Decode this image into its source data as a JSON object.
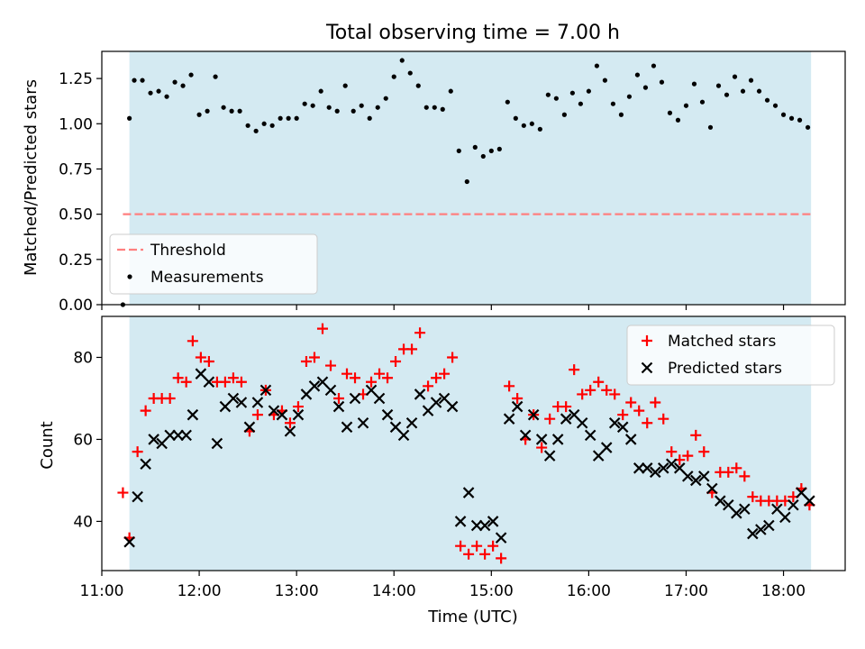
{
  "title": "Total observing time = 7.00 h",
  "colors": {
    "shade": "#add8e6",
    "threshold": "#ff7f7f",
    "measurement": "#000000",
    "matched": "#ff0000",
    "predicted": "#000000"
  },
  "chart_data": [
    {
      "type": "scatter",
      "ylabel": "Matched/Predicted stars",
      "xlim": [
        "11:00",
        "18:38"
      ],
      "ylim": [
        0,
        1.4
      ],
      "yticks": [
        0.0,
        0.25,
        0.5,
        0.75,
        1.0,
        1.25
      ],
      "ytick_labels": [
        "0.00",
        "0.25",
        "0.50",
        "0.75",
        "1.00",
        "1.25"
      ],
      "legend_position": "lower-left",
      "shaded_region": [
        "11:17",
        "18:17"
      ],
      "threshold": {
        "name": "Threshold",
        "y": 0.5,
        "x_range": [
          "11:13",
          "18:17"
        ]
      },
      "series": [
        {
          "name": "Measurements",
          "x": [
            "11:13",
            "11:17",
            "11:20",
            "11:25",
            "11:30",
            "11:35",
            "11:40",
            "11:45",
            "11:50",
            "11:55",
            "12:00",
            "12:05",
            "12:10",
            "12:15",
            "12:20",
            "12:25",
            "12:30",
            "12:35",
            "12:40",
            "12:45",
            "12:50",
            "12:55",
            "13:00",
            "13:05",
            "13:10",
            "13:15",
            "13:20",
            "13:25",
            "13:30",
            "13:35",
            "13:40",
            "13:45",
            "13:50",
            "13:55",
            "14:00",
            "14:05",
            "14:10",
            "14:15",
            "14:20",
            "14:25",
            "14:30",
            "14:35",
            "14:40",
            "14:45",
            "14:50",
            "14:55",
            "15:00",
            "15:05",
            "15:10",
            "15:15",
            "15:20",
            "15:25",
            "15:30",
            "15:35",
            "15:40",
            "15:45",
            "15:50",
            "15:55",
            "16:00",
            "16:05",
            "16:10",
            "16:15",
            "16:20",
            "16:25",
            "16:30",
            "16:35",
            "16:40",
            "16:45",
            "16:50",
            "16:55",
            "17:00",
            "17:05",
            "17:10",
            "17:15",
            "17:20",
            "17:25",
            "17:30",
            "17:35",
            "17:40",
            "17:45",
            "17:50",
            "17:55",
            "18:00",
            "18:05",
            "18:10",
            "18:15"
          ],
          "y": [
            0.0,
            1.03,
            1.24,
            1.24,
            1.17,
            1.18,
            1.15,
            1.23,
            1.21,
            1.27,
            1.05,
            1.07,
            1.26,
            1.09,
            1.07,
            1.07,
            0.99,
            0.96,
            1.0,
            0.99,
            1.03,
            1.03,
            1.03,
            1.11,
            1.1,
            1.18,
            1.09,
            1.07,
            1.21,
            1.07,
            1.1,
            1.03,
            1.09,
            1.14,
            1.26,
            1.35,
            1.28,
            1.21,
            1.09,
            1.09,
            1.08,
            1.18,
            0.85,
            0.68,
            0.87,
            0.82,
            0.85,
            0.86,
            1.12,
            1.03,
            0.99,
            1.0,
            0.97,
            1.16,
            1.14,
            1.05,
            1.17,
            1.11,
            1.18,
            1.32,
            1.24,
            1.11,
            1.05,
            1.15,
            1.27,
            1.2,
            1.32,
            1.23,
            1.06,
            1.02,
            1.1,
            1.22,
            1.12,
            0.98,
            1.21,
            1.16,
            1.26,
            1.18,
            1.24,
            1.18,
            1.13,
            1.1,
            1.05,
            1.03,
            1.02,
            0.98
          ]
        }
      ]
    },
    {
      "type": "scatter",
      "xlabel": "Time (UTC)",
      "ylabel": "Count",
      "xlim": [
        "11:00",
        "18:38"
      ],
      "ylim": [
        28,
        90
      ],
      "yticks": [
        40,
        60,
        80
      ],
      "ytick_labels": [
        "40",
        "60",
        "80"
      ],
      "xticks": [
        "11:00",
        "12:00",
        "13:00",
        "14:00",
        "15:00",
        "16:00",
        "17:00",
        "18:00"
      ],
      "legend_position": "upper-right",
      "shaded_region": [
        "11:17",
        "18:17"
      ],
      "series": [
        {
          "name": "Matched stars",
          "marker": "plus",
          "points": [
            [
              "11:13",
              47
            ],
            [
              "11:17",
              36
            ],
            [
              "11:22",
              57
            ],
            [
              "11:27",
              67
            ],
            [
              "11:32",
              70
            ],
            [
              "11:37",
              70
            ],
            [
              "11:42",
              70
            ],
            [
              "11:47",
              75
            ],
            [
              "11:52",
              74
            ],
            [
              "11:56",
              84
            ],
            [
              "12:01",
              80
            ],
            [
              "12:06",
              79
            ],
            [
              "12:11",
              74
            ],
            [
              "12:16",
              74
            ],
            [
              "12:21",
              75
            ],
            [
              "12:26",
              74
            ],
            [
              "12:31",
              62
            ],
            [
              "12:36",
              66
            ],
            [
              "12:41",
              72
            ],
            [
              "12:46",
              66
            ],
            [
              "12:51",
              67
            ],
            [
              "12:56",
              64
            ],
            [
              "13:01",
              68
            ],
            [
              "13:06",
              79
            ],
            [
              "13:11",
              80
            ],
            [
              "13:16",
              87
            ],
            [
              "13:21",
              78
            ],
            [
              "13:26",
              70
            ],
            [
              "13:31",
              76
            ],
            [
              "13:36",
              75
            ],
            [
              "13:41",
              71
            ],
            [
              "13:46",
              74
            ],
            [
              "13:51",
              76
            ],
            [
              "13:56",
              75
            ],
            [
              "14:01",
              79
            ],
            [
              "14:06",
              82
            ],
            [
              "14:11",
              82
            ],
            [
              "14:16",
              86
            ],
            [
              "14:21",
              73
            ],
            [
              "14:26",
              75
            ],
            [
              "14:31",
              76
            ],
            [
              "14:36",
              80
            ],
            [
              "14:41",
              34
            ],
            [
              "14:46",
              32
            ],
            [
              "14:51",
              34
            ],
            [
              "14:56",
              32
            ],
            [
              "15:01",
              34
            ],
            [
              "15:06",
              31
            ],
            [
              "15:11",
              73
            ],
            [
              "15:16",
              70
            ],
            [
              "15:21",
              60
            ],
            [
              "15:26",
              66
            ],
            [
              "15:31",
              58
            ],
            [
              "15:36",
              65
            ],
            [
              "15:41",
              68
            ],
            [
              "15:46",
              68
            ],
            [
              "15:51",
              77
            ],
            [
              "15:56",
              71
            ],
            [
              "16:01",
              72
            ],
            [
              "16:06",
              74
            ],
            [
              "16:11",
              72
            ],
            [
              "16:16",
              71
            ],
            [
              "16:21",
              66
            ],
            [
              "16:26",
              69
            ],
            [
              "16:31",
              67
            ],
            [
              "16:36",
              64
            ],
            [
              "16:41",
              69
            ],
            [
              "16:46",
              65
            ],
            [
              "16:51",
              57
            ],
            [
              "16:56",
              55
            ],
            [
              "17:01",
              56
            ],
            [
              "17:06",
              61
            ],
            [
              "17:11",
              57
            ],
            [
              "17:16",
              47
            ],
            [
              "17:21",
              52
            ],
            [
              "17:26",
              52
            ],
            [
              "17:31",
              53
            ],
            [
              "17:36",
              51
            ],
            [
              "17:41",
              46
            ],
            [
              "17:46",
              45
            ],
            [
              "17:51",
              45
            ],
            [
              "17:56",
              45
            ],
            [
              "18:01",
              45
            ],
            [
              "18:06",
              46
            ],
            [
              "18:11",
              48
            ],
            [
              "18:16",
              44
            ]
          ]
        },
        {
          "name": "Predicted stars",
          "marker": "x",
          "points": [
            [
              "11:17",
              35
            ],
            [
              "11:22",
              46
            ],
            [
              "11:27",
              54
            ],
            [
              "11:32",
              60
            ],
            [
              "11:37",
              59
            ],
            [
              "11:42",
              61
            ],
            [
              "11:47",
              61
            ],
            [
              "11:52",
              61
            ],
            [
              "11:56",
              66
            ],
            [
              "12:01",
              76
            ],
            [
              "12:06",
              74
            ],
            [
              "12:11",
              59
            ],
            [
              "12:16",
              68
            ],
            [
              "12:21",
              70
            ],
            [
              "12:26",
              69
            ],
            [
              "12:31",
              63
            ],
            [
              "12:36",
              69
            ],
            [
              "12:41",
              72
            ],
            [
              "12:46",
              67
            ],
            [
              "12:51",
              66
            ],
            [
              "12:56",
              62
            ],
            [
              "13:01",
              66
            ],
            [
              "13:06",
              71
            ],
            [
              "13:11",
              73
            ],
            [
              "13:16",
              74
            ],
            [
              "13:21",
              72
            ],
            [
              "13:26",
              68
            ],
            [
              "13:31",
              63
            ],
            [
              "13:36",
              70
            ],
            [
              "13:41",
              64
            ],
            [
              "13:46",
              72
            ],
            [
              "13:51",
              70
            ],
            [
              "13:56",
              66
            ],
            [
              "14:01",
              63
            ],
            [
              "14:06",
              61
            ],
            [
              "14:11",
              64
            ],
            [
              "14:16",
              71
            ],
            [
              "14:21",
              67
            ],
            [
              "14:26",
              69
            ],
            [
              "14:31",
              70
            ],
            [
              "14:36",
              68
            ],
            [
              "14:41",
              40
            ],
            [
              "14:46",
              47
            ],
            [
              "14:51",
              39
            ],
            [
              "14:56",
              39
            ],
            [
              "15:01",
              40
            ],
            [
              "15:06",
              36
            ],
            [
              "15:11",
              65
            ],
            [
              "15:16",
              68
            ],
            [
              "15:21",
              61
            ],
            [
              "15:26",
              66
            ],
            [
              "15:31",
              60
            ],
            [
              "15:36",
              56
            ],
            [
              "15:41",
              60
            ],
            [
              "15:46",
              65
            ],
            [
              "15:51",
              66
            ],
            [
              "15:56",
              64
            ],
            [
              "16:01",
              61
            ],
            [
              "16:06",
              56
            ],
            [
              "16:11",
              58
            ],
            [
              "16:16",
              64
            ],
            [
              "16:21",
              63
            ],
            [
              "16:26",
              60
            ],
            [
              "16:31",
              53
            ],
            [
              "16:36",
              53
            ],
            [
              "16:41",
              52
            ],
            [
              "16:46",
              53
            ],
            [
              "16:51",
              54
            ],
            [
              "16:56",
              53
            ],
            [
              "17:01",
              51
            ],
            [
              "17:06",
              50
            ],
            [
              "17:11",
              51
            ],
            [
              "17:16",
              48
            ],
            [
              "17:21",
              45
            ],
            [
              "17:26",
              44
            ],
            [
              "17:31",
              42
            ],
            [
              "17:36",
              43
            ],
            [
              "17:41",
              37
            ],
            [
              "17:46",
              38
            ],
            [
              "17:51",
              39
            ],
            [
              "17:56",
              43
            ],
            [
              "18:01",
              41
            ],
            [
              "18:06",
              44
            ],
            [
              "18:11",
              47
            ],
            [
              "18:16",
              45
            ]
          ]
        }
      ]
    }
  ]
}
